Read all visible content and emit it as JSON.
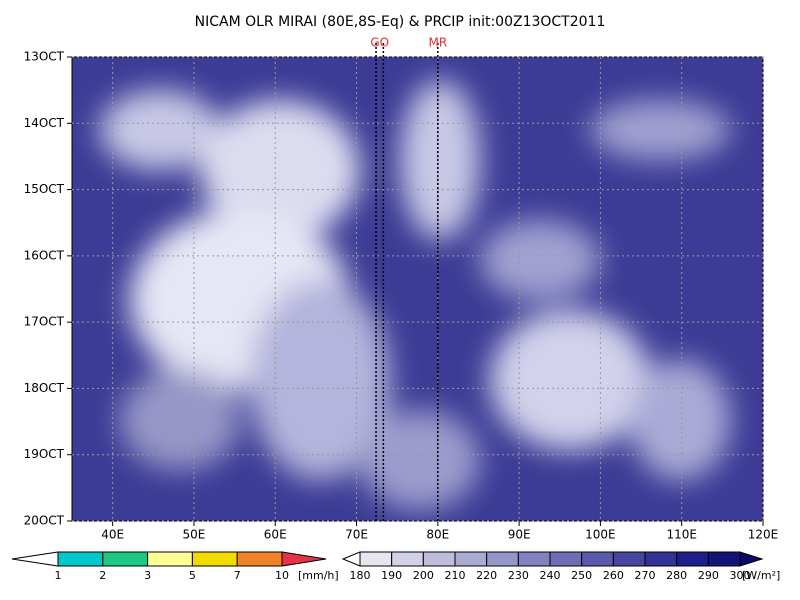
{
  "chart_data": {
    "type": "heatmap",
    "title": "NICAM OLR MIRAI (80E,8S-Eq) & PRCIP init:00Z13OCT2011",
    "xlim": [
      35,
      120
    ],
    "xticks": [
      {
        "value": 40,
        "label": "40E"
      },
      {
        "value": 50,
        "label": "50E"
      },
      {
        "value": 60,
        "label": "60E"
      },
      {
        "value": 70,
        "label": "70E"
      },
      {
        "value": 80,
        "label": "80E"
      },
      {
        "value": 90,
        "label": "90E"
      },
      {
        "value": 100,
        "label": "100E"
      },
      {
        "value": 110,
        "label": "110E"
      },
      {
        "value": 120,
        "label": "120E"
      }
    ],
    "ylim": [
      13,
      20
    ],
    "yticks": [
      {
        "value": 13,
        "label": "13OCT"
      },
      {
        "value": 14,
        "label": "14OCT"
      },
      {
        "value": 15,
        "label": "15OCT"
      },
      {
        "value": 16,
        "label": "16OCT"
      },
      {
        "value": 17,
        "label": "17OCT"
      },
      {
        "value": 18,
        "label": "18OCT"
      },
      {
        "value": 19,
        "label": "19OCT"
      },
      {
        "value": 20,
        "label": "20OCT"
      }
    ],
    "grid": true,
    "annotations": [
      {
        "label": "GO",
        "x": [
          72.4,
          73.3
        ],
        "color": "#e03030"
      },
      {
        "label": "MR",
        "x": [
          80
        ],
        "color": "#e03030"
      }
    ],
    "colorbars": [
      {
        "levels": [
          1,
          2,
          3,
          5,
          7,
          10
        ],
        "unit": "[mm/h]",
        "colors": [
          "#ffffff",
          "#00c8c8",
          "#1ec882",
          "#ffff96",
          "#f0dc00",
          "#f08228",
          "#e63246"
        ]
      },
      {
        "levels": [
          180,
          190,
          200,
          210,
          220,
          230,
          240,
          250,
          260,
          270,
          280,
          290,
          300
        ],
        "unit": "[W/m²]",
        "colors": [
          "#ffffff",
          "#e6e6f0",
          "#d2d2e6",
          "#bebedc",
          "#aaaad2",
          "#9696c8",
          "#8282be",
          "#6e6eb4",
          "#5a5aaa",
          "#4646a0",
          "#323296",
          "#1e1e8c",
          "#141478",
          "#0a0a6e"
        ]
      }
    ]
  }
}
